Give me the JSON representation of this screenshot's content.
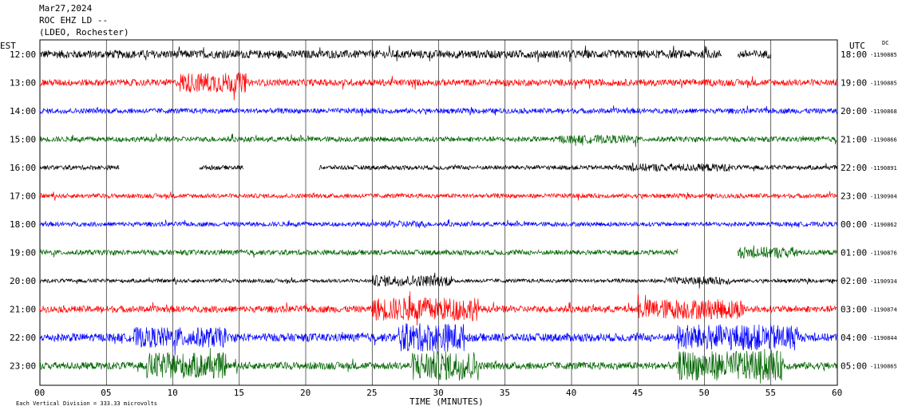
{
  "header": {
    "date": "Mar27,2024",
    "station": "ROC EHZ LD --",
    "network": "(LDEO, Rochester)"
  },
  "left_zone_label": "EST",
  "right_zone_label": "UTC",
  "dc_label": "DC",
  "footer_note": "Each Vertical Division =  333.33 microvolts",
  "colors": {
    "black": "#000000",
    "red": "#ff0000",
    "blue": "#0000ff",
    "green": "#006400"
  },
  "chart_data": {
    "type": "line",
    "title": "ROC EHZ LD --",
    "xlabel": "TIME (MINUTES)",
    "ylabel": "",
    "xlim": [
      0,
      60
    ],
    "x_ticks": [
      "00",
      "05",
      "10",
      "15",
      "20",
      "25",
      "30",
      "35",
      "40",
      "45",
      "50",
      "55",
      "60"
    ],
    "grid": true,
    "rows": [
      {
        "est": "12:00",
        "utc": "18:00",
        "dc": "-1190885",
        "color": "black",
        "amp": 0.55,
        "gaps": [
          [
            51.3,
            52.5
          ],
          [
            55,
            60
          ]
        ],
        "bursts": []
      },
      {
        "est": "13:00",
        "utc": "19:00",
        "dc": "-1190885",
        "color": "red",
        "amp": 0.45,
        "gaps": [],
        "bursts": [
          [
            10.5,
            15.5,
            3.0
          ]
        ]
      },
      {
        "est": "14:00",
        "utc": "20:00",
        "dc": "-1190868",
        "color": "blue",
        "amp": 0.35,
        "gaps": [],
        "bursts": []
      },
      {
        "est": "15:00",
        "utc": "21:00",
        "dc": "-1190866",
        "color": "green",
        "amp": 0.35,
        "gaps": [],
        "bursts": [
          [
            39,
            45,
            1.6
          ]
        ]
      },
      {
        "est": "16:00",
        "utc": "22:00",
        "dc": "-1190891",
        "color": "black",
        "amp": 0.3,
        "gaps": [
          [
            6,
            12
          ],
          [
            15.3,
            21
          ]
        ],
        "bursts": [
          [
            44,
            52,
            1.8
          ]
        ]
      },
      {
        "est": "17:00",
        "utc": "23:00",
        "dc": "-1190904",
        "color": "red",
        "amp": 0.3,
        "gaps": [],
        "bursts": []
      },
      {
        "est": "18:00",
        "utc": "00:00",
        "dc": "-1190862",
        "color": "blue",
        "amp": 0.3,
        "gaps": [],
        "bursts": [
          [
            26,
            29,
            1.6
          ]
        ]
      },
      {
        "est": "19:00",
        "utc": "01:00",
        "dc": "-1190876",
        "color": "green",
        "amp": 0.35,
        "gaps": [
          [
            48,
            52.5
          ]
        ],
        "bursts": [
          [
            52.5,
            57,
            2.2
          ]
        ]
      },
      {
        "est": "20:00",
        "utc": "02:00",
        "dc": "-1190934",
        "color": "black",
        "amp": 0.25,
        "gaps": [],
        "bursts": [
          [
            25,
            31,
            3.0
          ],
          [
            47,
            52,
            2.0
          ]
        ]
      },
      {
        "est": "21:00",
        "utc": "03:00",
        "dc": "-1190874",
        "color": "red",
        "amp": 0.45,
        "gaps": [],
        "bursts": [
          [
            25,
            33,
            3.5
          ],
          [
            45,
            53,
            3.0
          ]
        ]
      },
      {
        "est": "22:00",
        "utc": "04:00",
        "dc": "-1190844",
        "color": "blue",
        "amp": 0.55,
        "gaps": [],
        "bursts": [
          [
            7,
            14,
            2.5
          ],
          [
            27,
            32,
            3.5
          ],
          [
            48,
            57,
            3.2
          ]
        ]
      },
      {
        "est": "23:00",
        "utc": "05:00",
        "dc": "-1190865",
        "color": "green",
        "amp": 0.5,
        "gaps": [],
        "bursts": [
          [
            8,
            14,
            3.5
          ],
          [
            28,
            33,
            4.0
          ],
          [
            48,
            56,
            4.0
          ]
        ]
      }
    ]
  }
}
